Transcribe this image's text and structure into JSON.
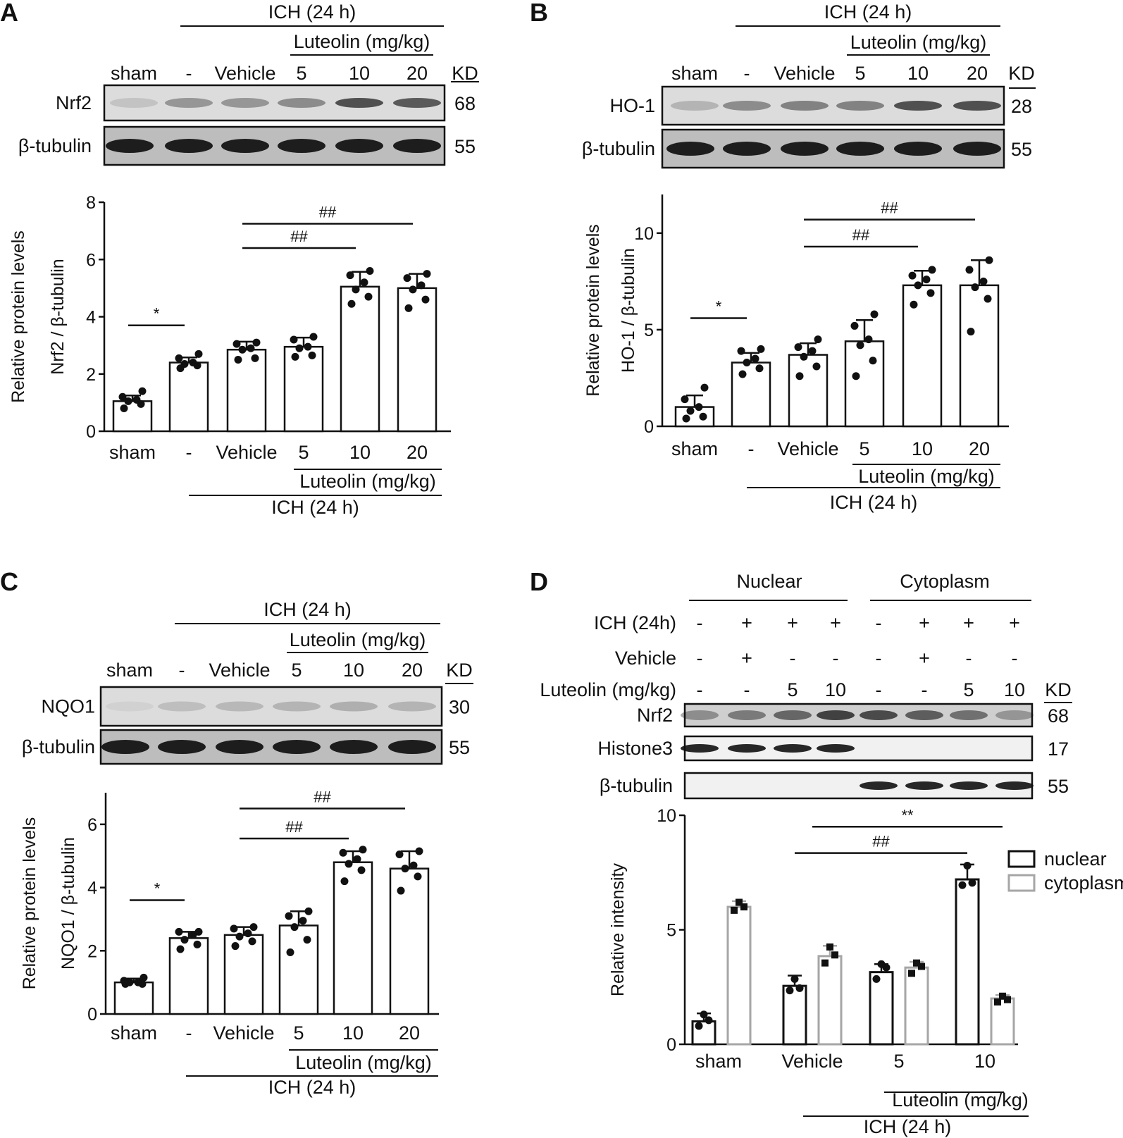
{
  "panels": {
    "A": {
      "letter": "A",
      "header": {
        "ich": "ICH (24 h)",
        "luteolin": "Luteolin (mg/kg)",
        "lanes": [
          "sham",
          "-",
          "Vehicle",
          "5",
          "10",
          "20"
        ],
        "kd": "KD"
      },
      "blots": [
        {
          "protein": "Nrf2",
          "kd": "68"
        },
        {
          "protein": "β-tubulin",
          "kd": "55"
        }
      ]
    },
    "B": {
      "letter": "B",
      "header": {
        "ich": "ICH (24 h)",
        "luteolin": "Luteolin (mg/kg)",
        "lanes": [
          "sham",
          "-",
          "Vehicle",
          "5",
          "10",
          "20"
        ],
        "kd": "KD"
      },
      "blots": [
        {
          "protein": "HO-1",
          "kd": "28"
        },
        {
          "protein": "β-tubulin",
          "kd": "55"
        }
      ]
    },
    "C": {
      "letter": "C",
      "header": {
        "ich": "ICH (24 h)",
        "luteolin": "Luteolin (mg/kg)",
        "lanes": [
          "sham",
          "-",
          "Vehicle",
          "5",
          "10",
          "20"
        ],
        "kd": "KD"
      },
      "blots": [
        {
          "protein": "NQO1",
          "kd": "30"
        },
        {
          "protein": "β-tubulin",
          "kd": "55"
        }
      ]
    },
    "D": {
      "letter": "D",
      "header": {
        "nuclear": "Nuclear",
        "cytoplasm": "Cytoplasm",
        "kd": "KD",
        "rows": [
          {
            "label": "ICH  (24h)",
            "values": [
              "-",
              "+",
              "+",
              "+",
              "-",
              "+",
              "+",
              "+"
            ]
          },
          {
            "label": "Vehicle",
            "values": [
              "-",
              "+",
              "-",
              "-",
              "-",
              "+",
              "-",
              "-"
            ]
          },
          {
            "label": "Luteolin (mg/kg)",
            "values": [
              "-",
              "-",
              "5",
              "10",
              "-",
              "-",
              "5",
              "10"
            ]
          }
        ]
      },
      "blots": [
        {
          "protein": "Nrf2",
          "kd": "68"
        },
        {
          "protein": "Histone3",
          "kd": "17"
        },
        {
          "protein": "β-tubulin",
          "kd": "55"
        }
      ]
    }
  },
  "chart_data": [
    {
      "panel": "A",
      "type": "bar",
      "categories": [
        "sham",
        "-",
        "Vehicle",
        "5",
        "10",
        "20"
      ],
      "values": [
        1.05,
        2.4,
        2.85,
        2.95,
        5.05,
        5.0
      ],
      "errors": [
        0.2,
        0.18,
        0.28,
        0.32,
        0.52,
        0.5
      ],
      "points": [
        [
          0.8,
          0.95,
          1.05,
          1.1,
          1.2,
          1.4
        ],
        [
          2.2,
          2.3,
          2.35,
          2.4,
          2.55,
          2.7
        ],
        [
          2.5,
          2.55,
          2.85,
          2.9,
          3.05,
          3.1
        ],
        [
          2.6,
          2.65,
          2.9,
          2.95,
          3.2,
          3.3
        ],
        [
          4.45,
          4.7,
          4.95,
          5.2,
          5.45,
          5.6
        ],
        [
          4.3,
          4.6,
          4.95,
          5.1,
          5.35,
          5.5
        ]
      ],
      "ylabel": "Relative protein levels",
      "ylabel2": "Nrf2 / β-tubulin",
      "ylim": [
        0,
        8
      ],
      "yticks": [
        "0",
        "2",
        "4",
        "6",
        "8"
      ],
      "group_labels": {
        "luteolin": "Luteolin (mg/kg)",
        "ich": "ICH (24 h)"
      },
      "annotations": [
        {
          "text": "*",
          "from": 0,
          "to": 1,
          "y": 3.7
        },
        {
          "text": "##",
          "from": 2,
          "to": 4,
          "y": 6.4
        },
        {
          "text": "##",
          "from": 2,
          "to": 5,
          "y": 7.25
        }
      ]
    },
    {
      "panel": "B",
      "type": "bar",
      "categories": [
        "sham",
        "-",
        "Vehicle",
        "5",
        "10",
        "20"
      ],
      "values": [
        1.0,
        3.3,
        3.7,
        4.4,
        7.3,
        7.3
      ],
      "errors": [
        0.6,
        0.5,
        0.6,
        1.1,
        0.75,
        1.3
      ],
      "points": [
        [
          0.4,
          0.5,
          0.8,
          1.0,
          1.4,
          2.0
        ],
        [
          2.7,
          3.0,
          3.3,
          3.5,
          3.9,
          4.0
        ],
        [
          2.6,
          3.1,
          3.6,
          3.9,
          4.1,
          4.5
        ],
        [
          2.6,
          3.4,
          4.2,
          4.5,
          5.2,
          5.8
        ],
        [
          6.3,
          6.9,
          7.3,
          7.6,
          7.8,
          8.1
        ],
        [
          4.9,
          6.6,
          7.2,
          7.5,
          8.1,
          8.6
        ]
      ],
      "ylabel": "Relative protein levels",
      "ylabel2": "HO-1 / β-tubulin",
      "ylim": [
        0,
        12
      ],
      "yticks": [
        "0",
        "5",
        "10"
      ],
      "group_labels": {
        "luteolin": "Luteolin (mg/kg)",
        "ich": "ICH (24 h)"
      },
      "annotations": [
        {
          "text": "*",
          "from": 0,
          "to": 1,
          "y": 5.6
        },
        {
          "text": "##",
          "from": 2,
          "to": 4,
          "y": 9.3
        },
        {
          "text": "##",
          "from": 2,
          "to": 5,
          "y": 10.7
        }
      ]
    },
    {
      "panel": "C",
      "type": "bar",
      "categories": [
        "sham",
        "-",
        "Vehicle",
        "5",
        "10",
        "20"
      ],
      "values": [
        1.0,
        2.4,
        2.5,
        2.8,
        4.8,
        4.6
      ],
      "errors": [
        0.12,
        0.2,
        0.25,
        0.45,
        0.35,
        0.55
      ],
      "points": [
        [
          0.95,
          0.95,
          1.0,
          1.0,
          1.05,
          1.15
        ],
        [
          2.05,
          2.2,
          2.35,
          2.5,
          2.6,
          2.6
        ],
        [
          2.15,
          2.3,
          2.45,
          2.55,
          2.7,
          2.75
        ],
        [
          1.95,
          2.35,
          2.75,
          2.95,
          3.1,
          3.25
        ],
        [
          4.2,
          4.55,
          4.75,
          4.9,
          5.1,
          5.2
        ],
        [
          3.9,
          4.35,
          4.6,
          4.7,
          5.05,
          5.15
        ]
      ],
      "ylabel": "Relative protein levels",
      "ylabel2": "NQO1 / β-tubulin",
      "ylim": [
        0,
        7
      ],
      "yticks": [
        "0",
        "2",
        "4",
        "6"
      ],
      "group_labels": {
        "luteolin": "Luteolin (mg/kg)",
        "ich": "ICH (24 h)"
      },
      "annotations": [
        {
          "text": "*",
          "from": 0,
          "to": 1,
          "y": 3.6
        },
        {
          "text": "##",
          "from": 2,
          "to": 4,
          "y": 5.55
        },
        {
          "text": "##",
          "from": 2,
          "to": 5,
          "y": 6.5
        }
      ]
    },
    {
      "panel": "D",
      "type": "bar",
      "categories": [
        "sham",
        "Vehicle",
        "5",
        "10"
      ],
      "series": [
        {
          "name": "nuclear",
          "values": [
            1.0,
            2.55,
            3.15,
            7.2
          ],
          "errors": [
            0.35,
            0.45,
            0.35,
            0.65
          ],
          "points": [
            [
              0.8,
              1.05,
              1.3
            ],
            [
              2.35,
              2.45,
              2.85
            ],
            [
              2.85,
              3.35,
              3.5
            ],
            [
              6.95,
              7.05,
              7.8
            ]
          ]
        },
        {
          "name": "cytoplasm",
          "values": [
            6.0,
            3.85,
            3.35,
            2.0
          ],
          "errors": [
            0.25,
            0.45,
            0.25,
            0.15
          ],
          "points": [
            [
              5.85,
              6.0,
              6.2
            ],
            [
              3.55,
              3.9,
              4.25
            ],
            [
              3.1,
              3.4,
              3.55
            ],
            [
              1.85,
              1.95,
              2.1
            ]
          ]
        }
      ],
      "colors": {
        "nuclear": "#111111",
        "cytoplasm": "#a6a6a6"
      },
      "ylabel": "Relative intensity",
      "ylim": [
        0,
        10
      ],
      "yticks": [
        "0",
        "5",
        "10"
      ],
      "legend": "top-right",
      "group_labels": {
        "luteolin": "Luteolin (mg/kg)",
        "ich": "ICH (24 h)"
      },
      "annotations": [
        {
          "text": "##",
          "from": 1,
          "to": 3,
          "y": 8.35
        },
        {
          "text": "**",
          "from": 1,
          "to": 3,
          "y": 9.5
        }
      ]
    }
  ]
}
